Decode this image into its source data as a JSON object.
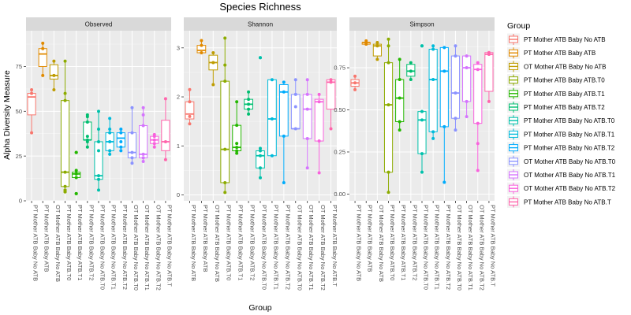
{
  "chart_data": {
    "type": "box",
    "title": "Species Richness",
    "xlabel": "Group",
    "ylabel": "Alpha Diversity Measure",
    "legend_title": "Group",
    "legend_position": "right",
    "grid": true,
    "groups": [
      {
        "name": "PT Mother ATB Baby No ATB",
        "color": "#F8766D"
      },
      {
        "name": "PT Mother ATB Baby ATB",
        "color": "#E18A00"
      },
      {
        "name": "OT Mother ATB Baby No ATB",
        "color": "#BE9C00"
      },
      {
        "name": "PT Mother ATB Baby ATB.T0",
        "color": "#8CAB00"
      },
      {
        "name": "PT Mother ATB Baby ATB.T1",
        "color": "#24B700"
      },
      {
        "name": "PT Mother ATB Baby ATB.T2",
        "color": "#00BE70"
      },
      {
        "name": "PT Mother ATB Baby No ATB.T0",
        "color": "#00C1AB"
      },
      {
        "name": "PT Mother ATB Baby No ATB.T1",
        "color": "#00BBDA"
      },
      {
        "name": "PT Mother ATB Baby No ATB.T2",
        "color": "#00ACFC"
      },
      {
        "name": "OT Mother ATB Baby No ATB.T0",
        "color": "#8B93FF"
      },
      {
        "name": "OT Mother ATB Baby No ATB.T1",
        "color": "#D575FE"
      },
      {
        "name": "OT Mother ATB Baby No ATB.T2",
        "color": "#F962DD"
      },
      {
        "name": "PT Mother ATB Baby No ATB.T",
        "color": "#FF65AC"
      }
    ],
    "panels": [
      {
        "name": "Observed",
        "ylim": [
          0,
          95
        ],
        "yticks": [
          0,
          25,
          50,
          75
        ],
        "boxes": [
          {
            "whislo": 38,
            "q1": 48,
            "med": 58,
            "q3": 60,
            "whishi": 62,
            "outliers": [],
            "points": [
              38,
              60,
              62
            ]
          },
          {
            "whislo": 70,
            "q1": 75,
            "med": 82,
            "q3": 85,
            "whishi": 88,
            "outliers": [],
            "points": [
              70,
              85,
              88
            ]
          },
          {
            "whislo": 62,
            "q1": 68,
            "med": 70,
            "q3": 76,
            "whishi": 78,
            "outliers": [],
            "points": [
              62,
              70,
              78
            ]
          },
          {
            "whislo": 8,
            "q1": 8,
            "med": 16,
            "q3": 56,
            "whishi": 78,
            "outliers": [
              5,
              6
            ],
            "points": [
              5,
              6,
              8,
              16,
              56,
              60,
              78
            ]
          },
          {
            "whislo": 13,
            "q1": 13,
            "med": 15,
            "q3": 16,
            "whishi": 17,
            "outliers": [
              4,
              27
            ],
            "points": [
              4,
              13,
              15,
              17,
              27
            ]
          },
          {
            "whislo": 30,
            "q1": 34,
            "med": 34,
            "q3": 44,
            "whishi": 48,
            "outliers": [],
            "points": [
              30,
              33,
              34,
              36,
              44,
              47,
              48
            ]
          },
          {
            "whislo": 6,
            "q1": 12,
            "med": 14,
            "q3": 33,
            "whishi": 50,
            "outliers": [],
            "points": [
              6,
              12,
              14,
              28,
              33,
              40,
              50
            ]
          },
          {
            "whislo": 26,
            "q1": 28,
            "med": 33,
            "q3": 38,
            "whishi": 46,
            "outliers": [],
            "points": [
              26,
              28,
              33,
              38,
              40,
              46
            ]
          },
          {
            "whislo": 28,
            "q1": 30,
            "med": 35,
            "q3": 38,
            "whishi": 40,
            "outliers": [],
            "points": [
              28,
              30,
              33,
              38,
              40
            ]
          },
          {
            "whislo": 21,
            "q1": 24,
            "med": 27,
            "q3": 38,
            "whishi": 52,
            "outliers": [],
            "points": [
              21,
              24,
              27,
              38,
              52
            ]
          },
          {
            "whislo": 22,
            "q1": 24,
            "med": 26,
            "q3": 42,
            "whishi": 52,
            "outliers": [],
            "points": [
              22,
              24,
              26,
              42,
              48,
              52
            ]
          },
          {
            "whislo": 30,
            "q1": 32,
            "med": 34,
            "q3": 36,
            "whishi": 37,
            "outliers": [],
            "points": [
              30,
              32,
              34,
              36,
              37
            ]
          },
          {
            "whislo": 23,
            "q1": 28,
            "med": 33,
            "q3": 45,
            "whishi": 57,
            "outliers": [],
            "points": [
              23,
              33,
              57
            ]
          }
        ]
      },
      {
        "name": "Shannon",
        "ylim": [
          -0.12,
          3.35
        ],
        "yticks": [
          0,
          1,
          2,
          3
        ],
        "boxes": [
          {
            "whislo": 1.45,
            "q1": 1.55,
            "med": 1.65,
            "q3": 1.9,
            "whishi": 2.15,
            "outliers": [],
            "points": [
              1.45,
              1.6,
              1.9,
              2.15
            ]
          },
          {
            "whislo": 2.9,
            "q1": 2.9,
            "med": 2.95,
            "q3": 3.05,
            "whishi": 3.15,
            "outliers": [],
            "points": [
              2.9,
              3.05,
              3.15
            ]
          },
          {
            "whislo": 2.25,
            "q1": 2.55,
            "med": 2.7,
            "q3": 2.85,
            "whishi": 2.9,
            "outliers": [],
            "points": [
              2.25,
              2.7,
              2.9
            ]
          },
          {
            "whislo": 0.05,
            "q1": 0.25,
            "med": 0.93,
            "q3": 2.32,
            "whishi": 3.2,
            "outliers": [],
            "points": [
              0.05,
              0.25,
              0.93,
              2.32,
              2.65,
              3.2
            ]
          },
          {
            "whislo": 0.85,
            "q1": 0.9,
            "med": 0.97,
            "q3": 1.42,
            "whishi": 1.9,
            "outliers": [],
            "points": [
              0.85,
              0.9,
              0.97,
              1.05,
              1.42,
              1.9
            ]
          },
          {
            "whislo": 1.65,
            "q1": 1.75,
            "med": 1.85,
            "q3": 1.95,
            "whishi": 2.1,
            "outliers": [],
            "points": [
              1.65,
              1.75,
              1.85,
              1.95,
              2.1
            ]
          },
          {
            "whislo": 0.35,
            "q1": 0.55,
            "med": 0.8,
            "q3": 0.9,
            "whishi": 0.95,
            "outliers": [
              2.8
            ],
            "points": [
              0.35,
              0.55,
              0.8,
              0.9,
              0.95,
              2.8
            ]
          },
          {
            "whislo": 0.8,
            "q1": 0.8,
            "med": 1.55,
            "q3": 2.35,
            "whishi": 2.35,
            "outliers": [],
            "points": [
              0.8,
              1.55,
              2.35
            ]
          },
          {
            "whislo": 0.25,
            "q1": 1.2,
            "med": 2.1,
            "q3": 2.25,
            "whishi": 2.3,
            "outliers": [],
            "points": [
              0.25,
              1.2,
              2.1,
              2.3
            ]
          },
          {
            "whislo": 1.35,
            "q1": 1.35,
            "med": 1.35,
            "q3": 2.05,
            "whishi": 2.35,
            "outliers": [],
            "points": [
              1.35,
              1.8,
              2.05,
              2.35
            ]
          },
          {
            "whislo": 0.55,
            "q1": 1.15,
            "med": 1.75,
            "q3": 2.05,
            "whishi": 2.35,
            "outliers": [],
            "points": [
              0.55,
              1.15,
              1.75,
              2.05,
              2.35
            ]
          },
          {
            "whislo": 0.45,
            "q1": 1.1,
            "med": 1.9,
            "q3": 1.95,
            "whishi": 2.05,
            "outliers": [],
            "points": [
              0.45,
              1.1,
              1.9,
              2.05
            ]
          },
          {
            "whislo": 1.35,
            "q1": 1.75,
            "med": 2.3,
            "q3": 2.35,
            "whishi": 2.35,
            "outliers": [],
            "points": [
              1.35,
              2.3,
              2.35
            ]
          }
        ]
      },
      {
        "name": "Simpson",
        "ylim": [
          -0.04,
          0.97
        ],
        "yticks": [
          0,
          0.25,
          0.5,
          0.75
        ],
        "ytick_labels": [
          "0.00",
          "0.25",
          "0.50",
          "0.75"
        ],
        "boxes": [
          {
            "whislo": 0.62,
            "q1": 0.64,
            "med": 0.66,
            "q3": 0.68,
            "whishi": 0.7,
            "outliers": [],
            "points": [
              0.62,
              0.66,
              0.7
            ]
          },
          {
            "whislo": 0.89,
            "q1": 0.89,
            "med": 0.9,
            "q3": 0.9,
            "whishi": 0.91,
            "outliers": [],
            "points": [
              0.89,
              0.9,
              0.91
            ]
          },
          {
            "whislo": 0.8,
            "q1": 0.82,
            "med": 0.88,
            "q3": 0.89,
            "whishi": 0.9,
            "outliers": [],
            "points": [
              0.8,
              0.88,
              0.9
            ]
          },
          {
            "whislo": 0.01,
            "q1": 0.13,
            "med": 0.53,
            "q3": 0.78,
            "whishi": 0.92,
            "outliers": [],
            "points": [
              0.01,
              0.13,
              0.53,
              0.78,
              0.88,
              0.92
            ]
          },
          {
            "whislo": 0.38,
            "q1": 0.43,
            "med": 0.57,
            "q3": 0.68,
            "whishi": 0.8,
            "outliers": [],
            "points": [
              0.38,
              0.43,
              0.57,
              0.68,
              0.8
            ]
          },
          {
            "whislo": 0.68,
            "q1": 0.7,
            "med": 0.73,
            "q3": 0.77,
            "whishi": 0.78,
            "outliers": [],
            "points": [
              0.68,
              0.73,
              0.78
            ]
          },
          {
            "whislo": 0.13,
            "q1": 0.24,
            "med": 0.44,
            "q3": 0.49,
            "whishi": 0.5,
            "outliers": [
              0.88
            ],
            "points": [
              0.13,
              0.24,
              0.44,
              0.49,
              0.88
            ]
          },
          {
            "whislo": 0.33,
            "q1": 0.37,
            "med": 0.68,
            "q3": 0.86,
            "whishi": 0.88,
            "outliers": [],
            "points": [
              0.33,
              0.37,
              0.68,
              0.86,
              0.88
            ]
          },
          {
            "whislo": 0.07,
            "q1": 0.4,
            "med": 0.73,
            "q3": 0.87,
            "whishi": 0.87,
            "outliers": [],
            "points": [
              0.07,
              0.4,
              0.73,
              0.87
            ]
          },
          {
            "whislo": 0.38,
            "q1": 0.45,
            "med": 0.6,
            "q3": 0.82,
            "whishi": 0.88,
            "outliers": [],
            "points": [
              0.38,
              0.45,
              0.6,
              0.82,
              0.88
            ]
          },
          {
            "whislo": 0.46,
            "q1": 0.55,
            "med": 0.75,
            "q3": 0.82,
            "whishi": 0.83,
            "outliers": [],
            "points": [
              0.46,
              0.55,
              0.75,
              0.82
            ]
          },
          {
            "whislo": 0.14,
            "q1": 0.42,
            "med": 0.74,
            "q3": 0.77,
            "whishi": 0.78,
            "outliers": [],
            "points": [
              0.14,
              0.3,
              0.42,
              0.74,
              0.78
            ]
          },
          {
            "whislo": 0.55,
            "q1": 0.61,
            "med": 0.83,
            "q3": 0.84,
            "whishi": 0.84,
            "outliers": [],
            "points": [
              0.55,
              0.83,
              0.84
            ]
          }
        ]
      }
    ]
  }
}
